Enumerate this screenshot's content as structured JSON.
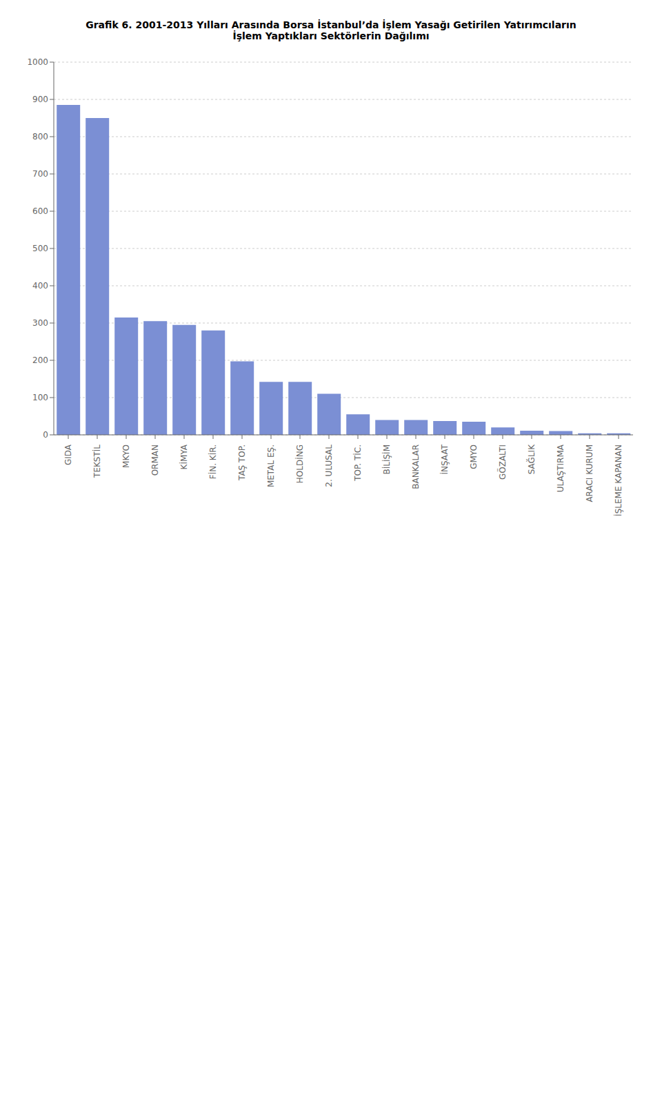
{
  "chart_data": {
    "type": "bar",
    "title": "Grafik 6. 2001-2013 Yılları Arasında Borsa İstanbul’da İşlem Yasağı Getirilen Yatırımcıların\nİşlem Yaptıkları Sektörlerin Dağılımı",
    "categories": [
      "GIDA",
      "TEKSTİL",
      "MKYO",
      "ORMAN",
      "KİMYA",
      "FİN. KİR.",
      "TAŞ TOP.",
      "METAL EŞ.",
      "HOLDİNG",
      "2. ULUSAL",
      "TOP. TİC.",
      "BİLİŞİM",
      "BANKALAR",
      "İNŞAAT",
      "GMYO",
      "GÖZALTI",
      "SAĞLIK",
      "ULAŞTIRMA",
      "ARACI KURUM",
      "İŞLEME KAPANAN"
    ],
    "values": [
      885,
      850,
      315,
      305,
      295,
      280,
      197,
      142,
      142,
      110,
      55,
      40,
      40,
      37,
      35,
      20,
      11,
      10,
      4,
      4
    ],
    "color": "#7B8FD4",
    "ylim": [
      0,
      1000
    ],
    "yticks": [
      0,
      100,
      200,
      300,
      400,
      500,
      600,
      700,
      800,
      900,
      1000
    ],
    "grid": true
  }
}
